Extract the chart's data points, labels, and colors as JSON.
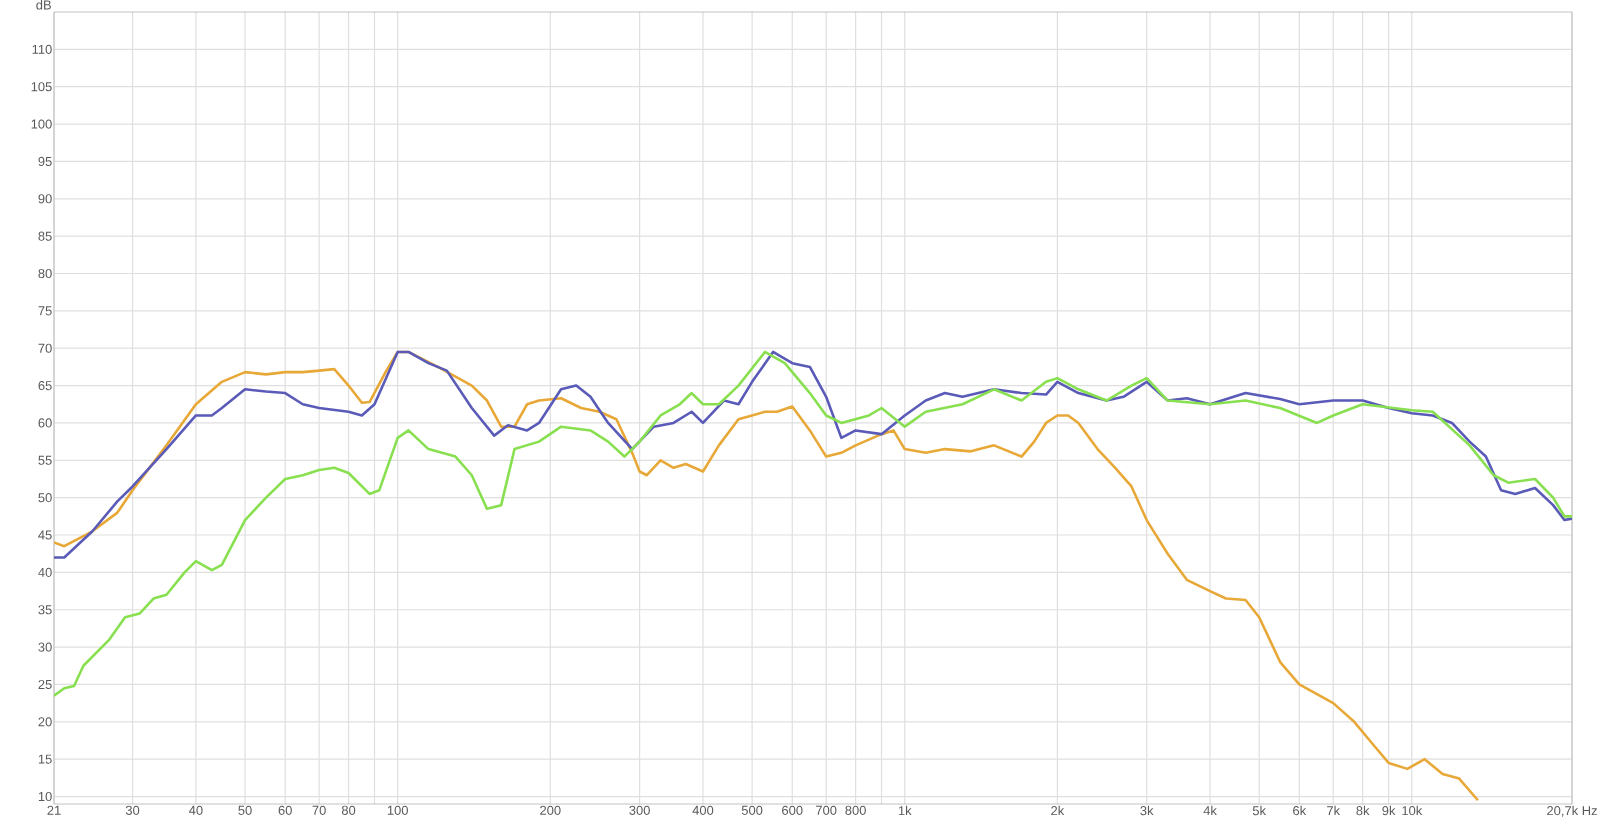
{
  "chart_data": {
    "type": "line",
    "ylabel": "dB",
    "xlim": [
      21,
      20700
    ],
    "ylim": [
      9,
      115
    ],
    "log": "x",
    "grid": true,
    "marker": "none",
    "line_style": "solid",
    "xticks": [
      21,
      30,
      40,
      50,
      60,
      70,
      80,
      {
        "value": 90,
        "label": null
      },
      100,
      200,
      300,
      400,
      500,
      600,
      700,
      800,
      {
        "value": 900,
        "label": null
      },
      {
        "value": 1000,
        "label": "1k"
      },
      {
        "value": 2000,
        "label": "2k"
      },
      {
        "value": 3000,
        "label": "3k"
      },
      {
        "value": 4000,
        "label": "4k"
      },
      {
        "value": 5000,
        "label": "5k"
      },
      {
        "value": 6000,
        "label": "6k"
      },
      {
        "value": 7000,
        "label": "7k"
      },
      {
        "value": 8000,
        "label": "8k"
      },
      {
        "value": 9000,
        "label": "9k"
      },
      {
        "value": 10000,
        "label": "10k"
      },
      {
        "value": 20700,
        "label": "20,7k Hz"
      }
    ],
    "yticks": [
      10,
      15,
      20,
      25,
      30,
      35,
      40,
      45,
      50,
      55,
      60,
      65,
      70,
      75,
      80,
      85,
      90,
      95,
      100,
      105,
      110
    ],
    "series": [
      {
        "color": "#e8a838",
        "x": [
          21,
          22,
          25,
          28,
          30,
          35,
          40,
          45,
          50,
          55,
          60,
          65,
          70,
          75,
          80,
          85,
          88,
          95,
          100,
          105,
          120,
          140,
          150,
          160,
          170,
          180,
          190,
          210,
          230,
          250,
          270,
          290,
          300,
          310,
          330,
          350,
          370,
          400,
          430,
          470,
          500,
          530,
          560,
          600,
          650,
          700,
          750,
          800,
          900,
          950,
          1000,
          1100,
          1200,
          1350,
          1500,
          1700,
          1800,
          1900,
          2000,
          2100,
          2200,
          2400,
          2600,
          2800,
          3000,
          3300,
          3600,
          4000,
          4300,
          4700,
          5000,
          5500,
          6000,
          7000,
          7700,
          8500,
          9000,
          9800,
          10600,
          11500,
          12400,
          13500
        ],
        "values": [
          44,
          43.5,
          45.5,
          48,
          51,
          57,
          62.5,
          65.5,
          66.8,
          66.5,
          66.8,
          66.8,
          67,
          67.2,
          65,
          62.7,
          62.8,
          67,
          69.5,
          69.5,
          67.5,
          65,
          63,
          59.5,
          59.5,
          62.5,
          63,
          63.3,
          62,
          61.5,
          60.5,
          56,
          53.5,
          53,
          55,
          54,
          54.5,
          53.5,
          57,
          60.5,
          61,
          61.5,
          61.5,
          62.2,
          59,
          55.5,
          56,
          57,
          58.5,
          59,
          56.5,
          56,
          56.5,
          56.2,
          57,
          55.5,
          57.5,
          60,
          61,
          61,
          60,
          56.5,
          54,
          51.5,
          47,
          42.5,
          39,
          37.5,
          36.5,
          36.3,
          34,
          28,
          25,
          22.5,
          20,
          16.5,
          14.5,
          13.7,
          15,
          13,
          12.4,
          9.5
        ]
      },
      {
        "color": "#5a5ab8",
        "x": [
          21,
          22,
          25,
          28,
          30,
          35,
          40,
          43,
          45,
          50,
          55,
          60,
          65,
          70,
          80,
          85,
          90,
          100,
          105,
          115,
          125,
          140,
          155,
          165,
          180,
          190,
          210,
          225,
          240,
          260,
          290,
          320,
          350,
          380,
          400,
          440,
          470,
          500,
          550,
          600,
          650,
          700,
          750,
          800,
          900,
          1000,
          1100,
          1200,
          1300,
          1500,
          1700,
          1900,
          2000,
          2200,
          2500,
          2700,
          3000,
          3300,
          3600,
          4000,
          4700,
          5500,
          6000,
          7000,
          8000,
          9000,
          10000,
          11000,
          12000,
          13000,
          14000,
          15000,
          16000,
          17500,
          19000,
          20000,
          20700
        ],
        "values": [
          42,
          42,
          45.5,
          49.5,
          51.5,
          56.5,
          61,
          61,
          62,
          64.5,
          64.2,
          64,
          62.5,
          62,
          61.5,
          61,
          62.5,
          69.5,
          69.5,
          68,
          67,
          62,
          58.3,
          59.7,
          59,
          60,
          64.5,
          65,
          63.5,
          60,
          56.5,
          59.5,
          60,
          61.5,
          60,
          63,
          62.5,
          65.5,
          69.5,
          68,
          67.5,
          63.5,
          58,
          59,
          58.5,
          61,
          63,
          64,
          63.5,
          64.5,
          64,
          63.8,
          65.5,
          64,
          63,
          63.5,
          65.5,
          63,
          63.3,
          62.5,
          64,
          63.2,
          62.5,
          63,
          63,
          62,
          61.3,
          61,
          60,
          57.5,
          55.5,
          51,
          50.5,
          51.3,
          49,
          47,
          47.2
        ]
      },
      {
        "color": "#88e050",
        "x": [
          21,
          22,
          23,
          24,
          27,
          29,
          31,
          33,
          35,
          38,
          40,
          43,
          45,
          50,
          55,
          60,
          65,
          70,
          75,
          80,
          88,
          92,
          100,
          105,
          115,
          130,
          140,
          150,
          160,
          170,
          190,
          210,
          240,
          260,
          280,
          300,
          330,
          360,
          380,
          400,
          430,
          470,
          530,
          580,
          650,
          700,
          750,
          850,
          900,
          1000,
          1100,
          1300,
          1500,
          1700,
          1900,
          2000,
          2200,
          2500,
          2800,
          3000,
          3300,
          4000,
          4700,
          5500,
          6500,
          7000,
          8000,
          10000,
          11000,
          13000,
          14500,
          15500,
          17500,
          19000,
          20000,
          20700
        ],
        "values": [
          23.5,
          24.5,
          24.8,
          27.5,
          31,
          34,
          34.5,
          36.5,
          37,
          40,
          41.5,
          40.3,
          41,
          47,
          50,
          52.5,
          53,
          53.7,
          54,
          53.3,
          50.5,
          51,
          58,
          59,
          56.5,
          55.5,
          53,
          48.5,
          49,
          56.5,
          57.5,
          59.5,
          59,
          57.5,
          55.5,
          57.5,
          61,
          62.5,
          64,
          62.5,
          62.5,
          65,
          69.5,
          68,
          64,
          61,
          60,
          61,
          62,
          59.5,
          61.5,
          62.5,
          64.5,
          63,
          65.5,
          66,
          64.5,
          63,
          65,
          66,
          63,
          62.5,
          63,
          62,
          60,
          61,
          62.5,
          61.7,
          61.5,
          57,
          53,
          52,
          52.5,
          50,
          47.5,
          47.5
        ]
      }
    ]
  }
}
